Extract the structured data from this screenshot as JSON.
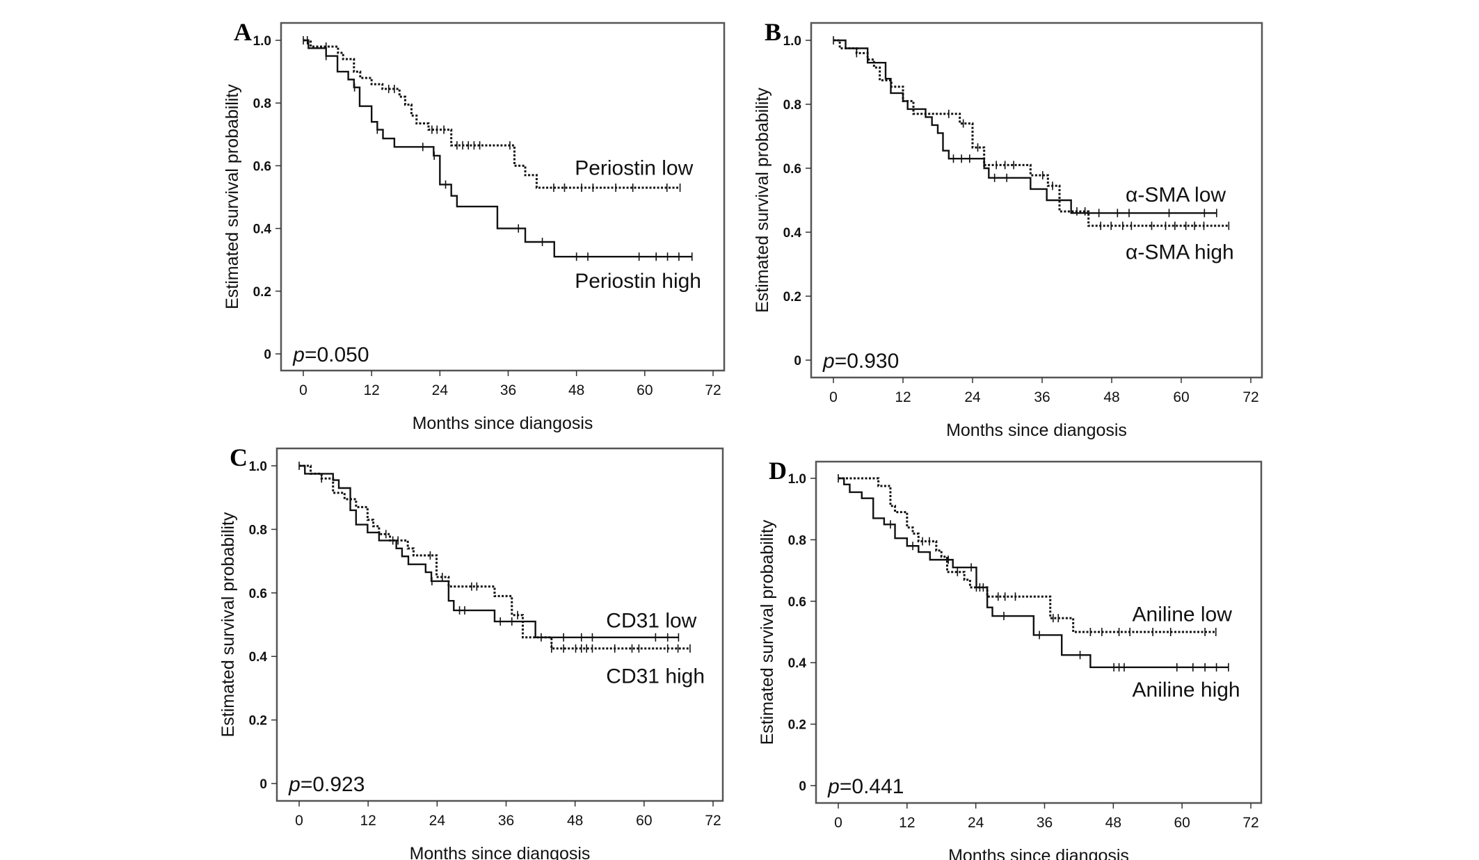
{
  "figure": {
    "panels": [
      "A",
      "B",
      "C",
      "D"
    ]
  },
  "chart_data": [
    {
      "panel": "A",
      "type": "line",
      "subtype": "kaplan-meier step",
      "xlabel": "Months since diangosis",
      "ylabel": "Estimated survival probability",
      "xlim": [
        0,
        72
      ],
      "ylim": [
        0,
        1
      ],
      "xticks": [
        "0",
        "12",
        "24",
        "36",
        "48",
        "60",
        "72"
      ],
      "yticks": [
        "0",
        "0.2",
        "0.4",
        "0.6",
        "0.8",
        "1.0"
      ],
      "p_prefix": "p",
      "p_value": "=0.050",
      "series": [
        {
          "name": "Periostin low",
          "style": "dotted",
          "steps": [
            [
              1.3,
              0.98
            ],
            [
              6.1,
              0.96
            ],
            [
              7,
              0.94
            ],
            [
              8.9,
              0.9
            ],
            [
              10,
              0.88
            ],
            [
              12,
              0.86
            ],
            [
              13.9,
              0.845
            ],
            [
              16.9,
              0.82
            ],
            [
              17.9,
              0.795
            ],
            [
              19,
              0.76
            ],
            [
              19.9,
              0.735
            ],
            [
              22,
              0.715
            ],
            [
              26,
              0.665
            ],
            [
              37.1,
              0.6
            ],
            [
              39,
              0.57
            ],
            [
              41,
              0.53
            ]
          ],
          "end": 66.2,
          "censored": [
            0.7,
            4,
            15,
            16,
            22.6,
            23.5,
            24.7,
            27,
            28,
            29,
            30,
            31,
            36.3,
            44,
            45.9,
            48.9,
            50.9,
            54.9,
            57.9,
            63.9,
            66.2
          ],
          "label_at": [
            47.7,
            0.595
          ]
        },
        {
          "name": "Periostin high",
          "style": "solid",
          "steps": [
            [
              0.9,
              0.975
            ],
            [
              4,
              0.95
            ],
            [
              6,
              0.9
            ],
            [
              7.9,
              0.875
            ],
            [
              8.9,
              0.85
            ],
            [
              9.9,
              0.79
            ],
            [
              12,
              0.74
            ],
            [
              13,
              0.715
            ],
            [
              14,
              0.687
            ],
            [
              16,
              0.66
            ],
            [
              22.9,
              0.632
            ],
            [
              24,
              0.54
            ],
            [
              26,
              0.504
            ],
            [
              27,
              0.47
            ],
            [
              34.1,
              0.4
            ],
            [
              39,
              0.357
            ],
            [
              44.1,
              0.31
            ]
          ],
          "end": 68.3,
          "censored": [
            0,
            4,
            9,
            13,
            21,
            23,
            25,
            37.8,
            42,
            48,
            50,
            59,
            62,
            64,
            66,
            68.3
          ],
          "label_at": [
            47.7,
            0.235
          ]
        }
      ]
    },
    {
      "panel": "B",
      "type": "line",
      "subtype": "kaplan-meier step",
      "xlabel": "Months since diangosis",
      "ylabel": "Estimated survival probability",
      "xlim": [
        0,
        72
      ],
      "ylim": [
        0,
        1
      ],
      "xticks": [
        "0",
        "12",
        "24",
        "36",
        "48",
        "60",
        "72"
      ],
      "yticks": [
        "0",
        "0.2",
        "0.4",
        "0.6",
        "0.8",
        "1.0"
      ],
      "p_prefix": "p",
      "p_value": "=0.930",
      "series": [
        {
          "name": "α-SMA low",
          "style": "solid",
          "steps": [
            [
              2.1,
              0.975
            ],
            [
              5.9,
              0.93
            ],
            [
              9,
              0.88
            ],
            [
              9.9,
              0.835
            ],
            [
              12,
              0.81
            ],
            [
              12.8,
              0.785
            ],
            [
              15.9,
              0.76
            ],
            [
              17,
              0.735
            ],
            [
              18,
              0.71
            ],
            [
              18.9,
              0.655
            ],
            [
              19.9,
              0.63
            ],
            [
              26,
              0.6
            ],
            [
              26.8,
              0.57
            ],
            [
              34,
              0.535
            ],
            [
              36.8,
              0.5
            ],
            [
              41,
              0.46
            ]
          ],
          "end": 66.1,
          "censored": [
            0,
            20.7,
            22.1,
            23.5,
            27.8,
            29.9,
            45.8,
            49,
            51,
            57.9,
            64,
            66.1
          ],
          "label_at": [
            50.4,
            0.52
          ]
        },
        {
          "name": "α-SMA high",
          "style": "dotted",
          "steps": [
            [
              1.1,
              0.975
            ],
            [
              4,
              0.96
            ],
            [
              5.9,
              0.94
            ],
            [
              7,
              0.915
            ],
            [
              8,
              0.875
            ],
            [
              10,
              0.855
            ],
            [
              12,
              0.81
            ],
            [
              13.8,
              0.77
            ],
            [
              21.8,
              0.74
            ],
            [
              24,
              0.665
            ],
            [
              26,
              0.61
            ],
            [
              34,
              0.578
            ],
            [
              37,
              0.545
            ],
            [
              39,
              0.465
            ],
            [
              44,
              0.42
            ]
          ],
          "end": 68.2,
          "censored": [
            4,
            19.9,
            22.4,
            24.9,
            28.1,
            29.6,
            31.1,
            36.1,
            37.8,
            42,
            43.4,
            46.1,
            47.9,
            49.9,
            51.4,
            54.9,
            57.3,
            58.9,
            60.8,
            62.3,
            63.9,
            68.2
          ],
          "label_at": [
            50.4,
            0.34
          ]
        }
      ]
    },
    {
      "panel": "C",
      "type": "line",
      "subtype": "kaplan-meier step",
      "xlabel": "Months since diangosis",
      "ylabel": "Estimated survival probability",
      "xlim": [
        0,
        72
      ],
      "ylim": [
        0,
        1
      ],
      "xticks": [
        "0",
        "12",
        "24",
        "36",
        "48",
        "60",
        "72"
      ],
      "yticks": [
        "0",
        "0.2",
        "0.4",
        "0.6",
        "0.8",
        "1.0"
      ],
      "p_prefix": "p",
      "p_value": "=0.923",
      "series": [
        {
          "name": "CD31 low",
          "style": "solid",
          "steps": [
            [
              1,
              0.975
            ],
            [
              5.9,
              0.955
            ],
            [
              6.9,
              0.93
            ],
            [
              8.9,
              0.86
            ],
            [
              9.9,
              0.815
            ],
            [
              11.9,
              0.79
            ],
            [
              13.9,
              0.765
            ],
            [
              16.9,
              0.74
            ],
            [
              17.9,
              0.715
            ],
            [
              19,
              0.69
            ],
            [
              22,
              0.665
            ],
            [
              23,
              0.637
            ],
            [
              26,
              0.575
            ],
            [
              26.9,
              0.545
            ],
            [
              34,
              0.51
            ],
            [
              41.1,
              0.46
            ]
          ],
          "end": 66,
          "censored": [
            0,
            23.1,
            27.9,
            28.8,
            35,
            37,
            42.1,
            46,
            49.1,
            51,
            62,
            64.1,
            66
          ],
          "label_at": [
            53.4,
            0.515
          ]
        },
        {
          "name": "CD31 high",
          "style": "dotted",
          "steps": [
            [
              2,
              0.975
            ],
            [
              3.9,
              0.96
            ],
            [
              5.9,
              0.915
            ],
            [
              7.9,
              0.895
            ],
            [
              9.9,
              0.87
            ],
            [
              11.9,
              0.83
            ],
            [
              12.9,
              0.81
            ],
            [
              13.9,
              0.785
            ],
            [
              15.8,
              0.765
            ],
            [
              18.9,
              0.74
            ],
            [
              19.9,
              0.718
            ],
            [
              23.9,
              0.65
            ],
            [
              26,
              0.62
            ],
            [
              34,
              0.59
            ],
            [
              37,
              0.53
            ],
            [
              38.9,
              0.46
            ],
            [
              43.9,
              0.425
            ]
          ],
          "end": 68,
          "censored": [
            3.9,
            15.1,
            16.3,
            17.2,
            22.8,
            24.9,
            30,
            30.9,
            38,
            43.9,
            46,
            48.1,
            49.1,
            50,
            51,
            54.9,
            57.9,
            59.1,
            64.1,
            65.9,
            68
          ],
          "label_at": [
            53.4,
            0.34
          ]
        }
      ]
    },
    {
      "panel": "D",
      "type": "line",
      "subtype": "kaplan-meier step",
      "xlabel": "Months since diangosis",
      "ylabel": "Estimated survival probability",
      "xlim": [
        0,
        72
      ],
      "ylim": [
        0,
        1
      ],
      "xticks": [
        "0",
        "12",
        "24",
        "36",
        "48",
        "60",
        "72"
      ],
      "yticks": [
        "0",
        "0.2",
        "0.4",
        "0.6",
        "0.8",
        "1.0"
      ],
      "p_prefix": "p",
      "p_value": "=0.441",
      "series": [
        {
          "name": "Aniline low",
          "style": "dotted",
          "steps": [
            [
              7,
              0.975
            ],
            [
              9.1,
              0.91
            ],
            [
              9.9,
              0.89
            ],
            [
              12,
              0.84
            ],
            [
              13,
              0.82
            ],
            [
              14,
              0.795
            ],
            [
              17.1,
              0.765
            ],
            [
              18,
              0.745
            ],
            [
              19,
              0.695
            ],
            [
              22,
              0.67
            ],
            [
              23,
              0.645
            ],
            [
              26,
              0.615
            ],
            [
              37,
              0.545
            ],
            [
              41,
              0.5
            ]
          ],
          "end": 65.9,
          "censored": [
            14.7,
            15.9,
            20.8,
            24.1,
            25.3,
            27.9,
            29.1,
            30.9,
            37.5,
            38.4,
            44,
            46,
            49,
            50.9,
            54.9,
            58,
            64,
            65.9
          ],
          "label_at": [
            51.3,
            0.56
          ]
        },
        {
          "name": "Aniline high",
          "style": "solid",
          "steps": [
            [
              1,
              0.98
            ],
            [
              2,
              0.955
            ],
            [
              4.1,
              0.935
            ],
            [
              6.1,
              0.87
            ],
            [
              8,
              0.85
            ],
            [
              9.9,
              0.805
            ],
            [
              12,
              0.78
            ],
            [
              14,
              0.76
            ],
            [
              16,
              0.735
            ],
            [
              20,
              0.71
            ],
            [
              24.1,
              0.645
            ],
            [
              26,
              0.58
            ],
            [
              26.9,
              0.552
            ],
            [
              34.1,
              0.49
            ],
            [
              39,
              0.425
            ],
            [
              44,
              0.385
            ]
          ],
          "end": 68.1,
          "censored": [
            0,
            9.1,
            13,
            19.2,
            23.2,
            24.7,
            28.9,
            35.1,
            42.2,
            48.1,
            49,
            49.9,
            59.1,
            61.9,
            64,
            66,
            68.1
          ],
          "label_at": [
            51.3,
            0.315
          ]
        }
      ]
    }
  ]
}
